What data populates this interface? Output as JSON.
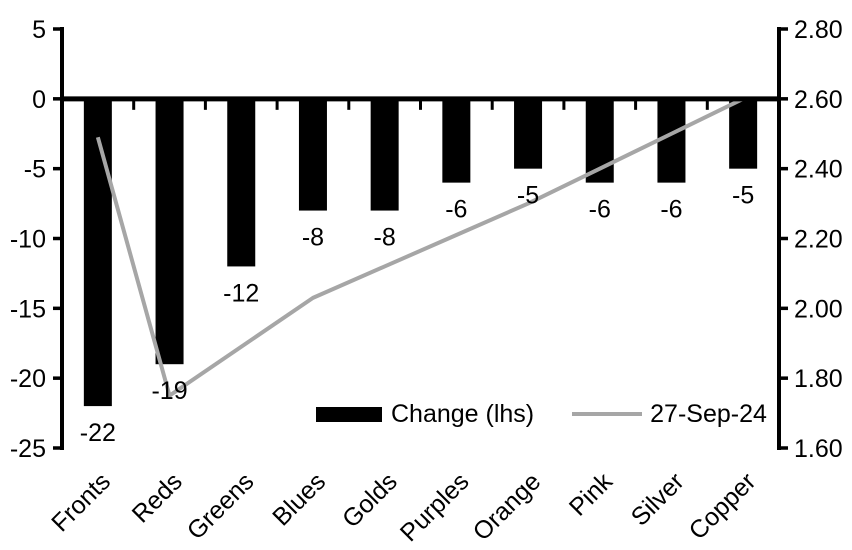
{
  "chart_data": {
    "type": "combo-bar-line",
    "title": "",
    "categories": [
      "Fronts",
      "Reds",
      "Greens",
      "Blues",
      "Golds",
      "Purples",
      "Orange",
      "Pink",
      "Silver",
      "Copper"
    ],
    "series": [
      {
        "name": "Change (lhs)",
        "type": "bar",
        "axis": "left",
        "color": "#000000",
        "values": [
          -22,
          -19,
          -12,
          -8,
          -8,
          -6,
          -5,
          -6,
          -6,
          -5
        ],
        "data_labels": [
          "-22",
          "-19",
          "-12",
          "-8",
          "-8",
          "-6",
          "-5",
          "-6",
          "-6",
          "-5"
        ]
      },
      {
        "name": "27-Sep-24",
        "type": "line",
        "axis": "right",
        "color": "#a6a6a6",
        "values": [
          2.49,
          1.75,
          1.89,
          2.03,
          2.12,
          2.21,
          2.3,
          2.4,
          2.5,
          2.6
        ]
      }
    ],
    "left_axis": {
      "min": -25,
      "max": 5,
      "ticks": [
        "5",
        "0",
        "-5",
        "-10",
        "-15",
        "-20",
        "-25"
      ]
    },
    "right_axis": {
      "min": 1.6,
      "max": 2.8,
      "ticks": [
        "2.80",
        "2.60",
        "2.40",
        "2.20",
        "2.00",
        "1.80",
        "1.60"
      ]
    },
    "axis_color": "#000000",
    "background": "#ffffff",
    "grid": false,
    "legend_position": "inside-bottom-center",
    "category_label_rotation_deg": -45
  }
}
